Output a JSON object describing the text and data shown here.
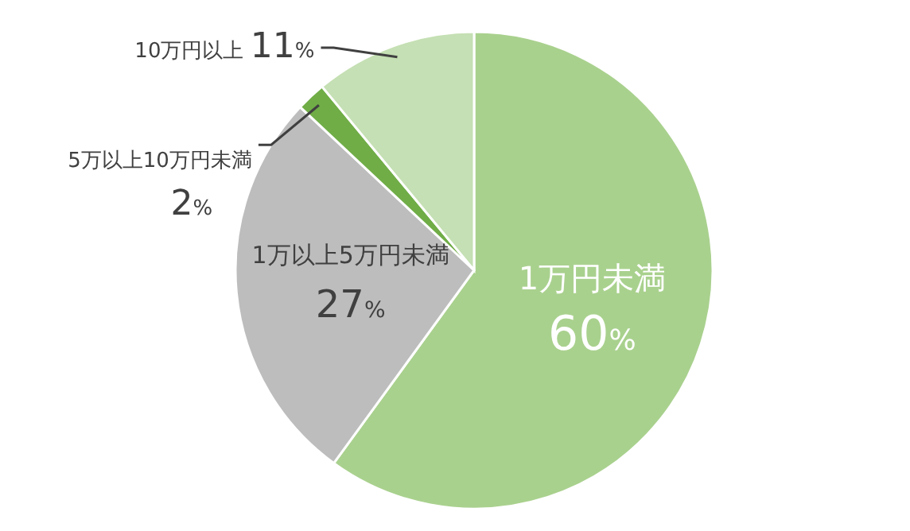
{
  "chart_data": {
    "type": "pie",
    "categories": [
      "1万円未満",
      "1万以上5万円未満",
      "5万以上10万円未満",
      "10万円以上"
    ],
    "values": [
      60,
      27,
      2,
      11
    ],
    "colors": [
      "#a9d18e",
      "#bdbdbd",
      "#70ad47",
      "#c5e0b4"
    ],
    "value_labels": [
      "60%",
      "27%",
      "2%",
      "11%"
    ]
  }
}
